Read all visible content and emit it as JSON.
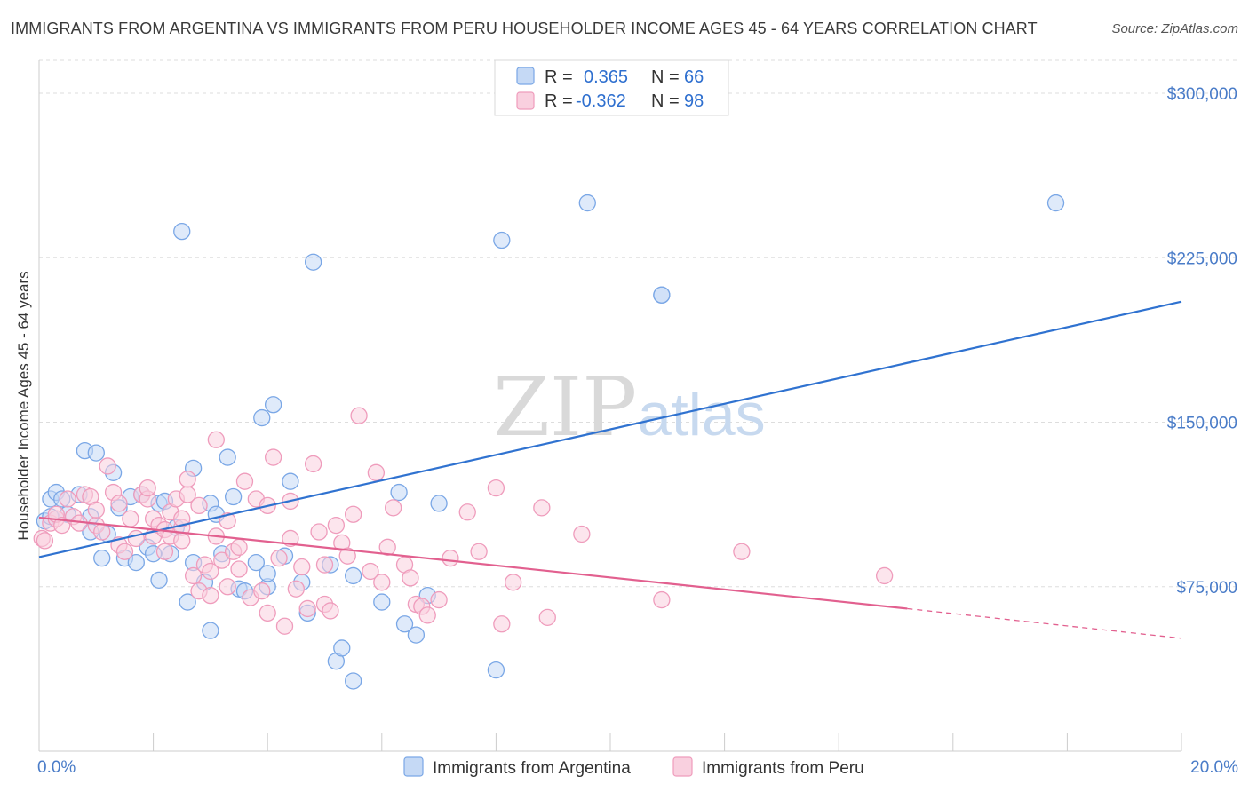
{
  "title": "IMMIGRANTS FROM ARGENTINA VS IMMIGRANTS FROM PERU HOUSEHOLDER INCOME AGES 45 - 64 YEARS CORRELATION CHART",
  "source": "Source: ZipAtlas.com",
  "watermark": {
    "zip": "ZIP",
    "atlas": "atlas"
  },
  "legend": {
    "rows": [
      {
        "r_label": "R =",
        "r_value": "0.365",
        "n_label": "N =",
        "n_value": "66"
      },
      {
        "r_label": "R =",
        "r_value": "-0.362",
        "n_label": "N =",
        "n_value": "98"
      }
    ]
  },
  "chart_data": {
    "type": "scatter",
    "title": "IMMIGRANTS FROM ARGENTINA VS IMMIGRANTS FROM PERU HOUSEHOLDER INCOME AGES 45 - 64 YEARS CORRELATION CHART",
    "xlabel": "",
    "ylabel": "Householder Income Ages 45 - 64 years",
    "xlim": [
      0,
      20
    ],
    "ylim": [
      0,
      315000
    ],
    "x_tick_labels": [
      "0.0%",
      "20.0%"
    ],
    "y_ticks": [
      75000,
      150000,
      225000,
      300000
    ],
    "y_tick_labels": [
      "$75,000",
      "$150,000",
      "$225,000",
      "$300,000"
    ],
    "grid": "horizontal dashed",
    "legend_position": "top-center",
    "series": [
      {
        "name": "Immigrants from Argentina",
        "color": "#7aa7e6",
        "fill": "#c5d9f5",
        "r": 0.365,
        "n": 66,
        "trend": {
          "x0": 0.0,
          "y0": 88500,
          "x1": 20.0,
          "y1": 205000,
          "color": "#2f72d0"
        },
        "points": [
          [
            0.1,
            105000
          ],
          [
            0.2,
            115000
          ],
          [
            0.2,
            107000
          ],
          [
            0.3,
            118000
          ],
          [
            0.4,
            115000
          ],
          [
            0.5,
            108000
          ],
          [
            0.7,
            117000
          ],
          [
            0.8,
            137000
          ],
          [
            0.9,
            107000
          ],
          [
            0.9,
            100000
          ],
          [
            1.0,
            136000
          ],
          [
            1.1,
            88000
          ],
          [
            1.2,
            99000
          ],
          [
            1.3,
            127000
          ],
          [
            1.4,
            111000
          ],
          [
            1.5,
            88000
          ],
          [
            1.6,
            116000
          ],
          [
            1.7,
            86000
          ],
          [
            1.8,
            117000
          ],
          [
            1.9,
            93000
          ],
          [
            2.0,
            90000
          ],
          [
            2.1,
            78000
          ],
          [
            2.1,
            113000
          ],
          [
            2.2,
            114000
          ],
          [
            2.3,
            90000
          ],
          [
            2.4,
            102000
          ],
          [
            2.5,
            237000
          ],
          [
            2.6,
            68000
          ],
          [
            2.7,
            86000
          ],
          [
            2.7,
            129000
          ],
          [
            2.9,
            77000
          ],
          [
            3.0,
            113000
          ],
          [
            3.0,
            55000
          ],
          [
            3.1,
            108000
          ],
          [
            3.2,
            90000
          ],
          [
            3.3,
            134000
          ],
          [
            3.4,
            116000
          ],
          [
            3.5,
            74000
          ],
          [
            3.6,
            73000
          ],
          [
            3.8,
            86000
          ],
          [
            3.9,
            152000
          ],
          [
            4.0,
            75000
          ],
          [
            4.0,
            81000
          ],
          [
            4.1,
            158000
          ],
          [
            4.3,
            89000
          ],
          [
            4.4,
            123000
          ],
          [
            4.6,
            77000
          ],
          [
            4.7,
            63000
          ],
          [
            4.8,
            223000
          ],
          [
            5.1,
            85000
          ],
          [
            5.2,
            41000
          ],
          [
            5.3,
            47000
          ],
          [
            5.5,
            32000
          ],
          [
            5.5,
            80000
          ],
          [
            6.0,
            68000
          ],
          [
            6.3,
            118000
          ],
          [
            6.4,
            58000
          ],
          [
            6.6,
            53000
          ],
          [
            6.8,
            71000
          ],
          [
            7.0,
            113000
          ],
          [
            8.0,
            37000
          ],
          [
            8.1,
            233000
          ],
          [
            9.6,
            250000
          ],
          [
            10.9,
            208000
          ],
          [
            10.9,
            208000
          ],
          [
            17.8,
            250000
          ]
        ]
      },
      {
        "name": "Immigrants from Peru",
        "color": "#ef9cbc",
        "fill": "#f9d0df",
        "r": -0.362,
        "n": 98,
        "trend": {
          "x0": 0.0,
          "y0": 106500,
          "x1": 15.2,
          "y1": 65000,
          "dash_to_x": 20.0,
          "dash_to_y": 51500,
          "color": "#e2608f"
        },
        "points": [
          [
            0.05,
            97000
          ],
          [
            0.1,
            96000
          ],
          [
            0.2,
            104000
          ],
          [
            0.3,
            106000
          ],
          [
            0.3,
            108000
          ],
          [
            0.4,
            103000
          ],
          [
            0.5,
            115000
          ],
          [
            0.6,
            107000
          ],
          [
            0.7,
            104000
          ],
          [
            0.8,
            117000
          ],
          [
            0.9,
            116000
          ],
          [
            1.0,
            103000
          ],
          [
            1.0,
            110000
          ],
          [
            1.1,
            100000
          ],
          [
            1.2,
            130000
          ],
          [
            1.3,
            118000
          ],
          [
            1.4,
            113000
          ],
          [
            1.4,
            94000
          ],
          [
            1.5,
            91000
          ],
          [
            1.6,
            106000
          ],
          [
            1.7,
            97000
          ],
          [
            1.8,
            117000
          ],
          [
            1.9,
            115000
          ],
          [
            1.9,
            120000
          ],
          [
            2.0,
            98000
          ],
          [
            2.0,
            106000
          ],
          [
            2.1,
            103000
          ],
          [
            2.2,
            101000
          ],
          [
            2.2,
            91000
          ],
          [
            2.3,
            98000
          ],
          [
            2.3,
            109000
          ],
          [
            2.4,
            115000
          ],
          [
            2.5,
            102000
          ],
          [
            2.5,
            106000
          ],
          [
            2.5,
            96000
          ],
          [
            2.6,
            117000
          ],
          [
            2.6,
            124000
          ],
          [
            2.7,
            80000
          ],
          [
            2.8,
            73000
          ],
          [
            2.8,
            112000
          ],
          [
            2.9,
            85000
          ],
          [
            3.0,
            82000
          ],
          [
            3.0,
            71000
          ],
          [
            3.1,
            142000
          ],
          [
            3.1,
            98000
          ],
          [
            3.2,
            87000
          ],
          [
            3.3,
            75000
          ],
          [
            3.3,
            105000
          ],
          [
            3.4,
            91000
          ],
          [
            3.5,
            93000
          ],
          [
            3.5,
            83000
          ],
          [
            3.6,
            123000
          ],
          [
            3.7,
            70000
          ],
          [
            3.8,
            115000
          ],
          [
            3.9,
            73000
          ],
          [
            4.0,
            63000
          ],
          [
            4.0,
            112000
          ],
          [
            4.1,
            134000
          ],
          [
            4.2,
            88000
          ],
          [
            4.3,
            57000
          ],
          [
            4.4,
            97000
          ],
          [
            4.4,
            114000
          ],
          [
            4.5,
            74000
          ],
          [
            4.6,
            84000
          ],
          [
            4.7,
            65000
          ],
          [
            4.8,
            131000
          ],
          [
            4.9,
            100000
          ],
          [
            5.0,
            85000
          ],
          [
            5.0,
            67000
          ],
          [
            5.1,
            64000
          ],
          [
            5.2,
            103000
          ],
          [
            5.3,
            95000
          ],
          [
            5.4,
            89000
          ],
          [
            5.5,
            108000
          ],
          [
            5.6,
            153000
          ],
          [
            5.8,
            82000
          ],
          [
            5.9,
            127000
          ],
          [
            6.0,
            77000
          ],
          [
            6.1,
            93000
          ],
          [
            6.2,
            111000
          ],
          [
            6.4,
            85000
          ],
          [
            6.5,
            79000
          ],
          [
            6.6,
            67000
          ],
          [
            6.7,
            66000
          ],
          [
            6.8,
            62000
          ],
          [
            7.0,
            69000
          ],
          [
            7.2,
            88000
          ],
          [
            7.5,
            109000
          ],
          [
            7.7,
            91000
          ],
          [
            8.0,
            120000
          ],
          [
            8.1,
            58000
          ],
          [
            8.3,
            77000
          ],
          [
            8.8,
            111000
          ],
          [
            8.9,
            61000
          ],
          [
            9.5,
            99000
          ],
          [
            10.9,
            69000
          ],
          [
            12.3,
            91000
          ],
          [
            14.8,
            80000
          ]
        ]
      }
    ]
  }
}
